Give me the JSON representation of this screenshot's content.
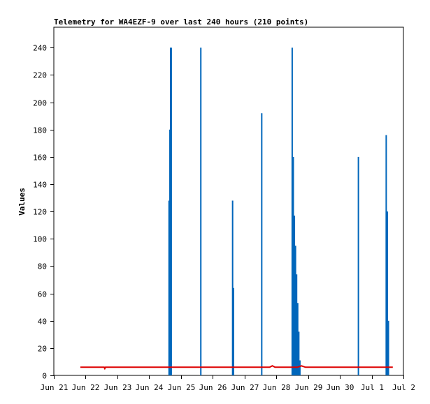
{
  "chart_data": {
    "type": "line",
    "title": "Telemetry for WA4EZF-9 over last 240 hours (210 points)",
    "xlabel": "",
    "ylabel": "Values",
    "x_tick_labels": [
      "Jun 21",
      "Jun 22",
      "Jun 23",
      "Jun 24",
      "Jun 25",
      "Jun 26",
      "Jun 27",
      "Jun 28",
      "Jun 29",
      "Jun 30",
      "Jul 1",
      "Jul 2"
    ],
    "xlim": [
      "2024-06-21",
      "2024-07-02"
    ],
    "ylim": [
      0,
      255
    ],
    "y_ticks": [
      0,
      20,
      40,
      60,
      80,
      100,
      120,
      140,
      160,
      180,
      200,
      220,
      240
    ],
    "grid": false,
    "series": [
      {
        "name": "",
        "color": "#0066bb",
        "style": "impulse",
        "points": [
          {
            "x": "2024-06-24T15:00",
            "y": 128
          },
          {
            "x": "2024-06-24T15:40",
            "y": 180
          },
          {
            "x": "2024-06-24T16:10",
            "y": 240
          },
          {
            "x": "2024-06-24T16:40",
            "y": 240
          },
          {
            "x": "2024-06-25T15:00",
            "y": 240
          },
          {
            "x": "2024-06-26T15:00",
            "y": 128
          },
          {
            "x": "2024-06-26T15:40",
            "y": 64
          },
          {
            "x": "2024-06-27T13:00",
            "y": 192
          },
          {
            "x": "2024-06-28T12:00",
            "y": 240
          },
          {
            "x": "2024-06-28T12:50",
            "y": 160
          },
          {
            "x": "2024-06-28T13:40",
            "y": 117
          },
          {
            "x": "2024-06-28T14:30",
            "y": 95
          },
          {
            "x": "2024-06-28T15:20",
            "y": 74
          },
          {
            "x": "2024-06-28T16:10",
            "y": 53
          },
          {
            "x": "2024-06-28T17:00",
            "y": 32
          },
          {
            "x": "2024-06-28T17:50",
            "y": 11
          },
          {
            "x": "2024-06-30T14:00",
            "y": 160
          },
          {
            "x": "2024-07-01T11:00",
            "y": 176
          },
          {
            "x": "2024-07-01T11:50",
            "y": 120
          },
          {
            "x": "2024-07-01T12:40",
            "y": 40
          }
        ]
      },
      {
        "name": "",
        "color": "#dd0000",
        "style": "line",
        "points": [
          {
            "x": "2024-06-21T20:00",
            "y": 6
          },
          {
            "x": "2024-06-22T14:00",
            "y": 6
          },
          {
            "x": "2024-06-22T14:30",
            "y": 5
          },
          {
            "x": "2024-06-22T15:00",
            "y": 6
          },
          {
            "x": "2024-06-27T19:00",
            "y": 6
          },
          {
            "x": "2024-06-27T21:00",
            "y": 7
          },
          {
            "x": "2024-06-27T23:00",
            "y": 6
          },
          {
            "x": "2024-06-28T16:00",
            "y": 6
          },
          {
            "x": "2024-06-28T19:00",
            "y": 7
          },
          {
            "x": "2024-06-28T22:00",
            "y": 6
          },
          {
            "x": "2024-07-01T16:00",
            "y": 6
          }
        ]
      }
    ]
  },
  "colors": {
    "axis": "#000000",
    "background": "#ffffff"
  }
}
